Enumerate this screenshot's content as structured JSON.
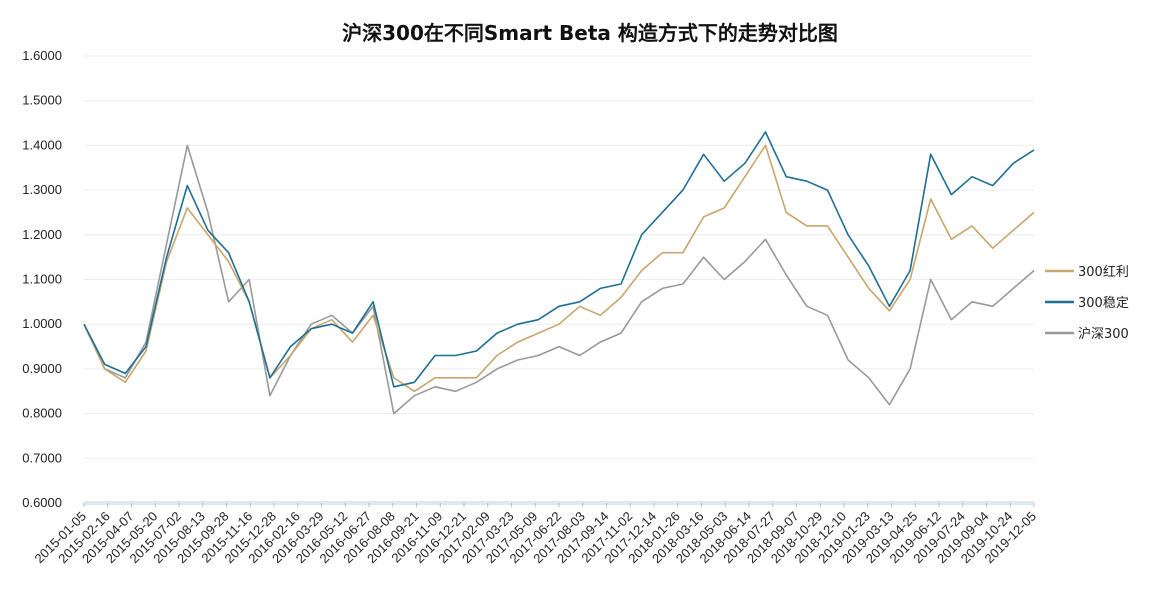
{
  "chart_data": {
    "type": "line",
    "title": "沪深300在不同Smart Beta 构造方式下的走势对比图",
    "xlabel": "",
    "ylabel": "",
    "ylim": [
      0.6,
      1.6
    ],
    "y_ticks": [
      "0.6000",
      "0.7000",
      "0.8000",
      "0.9000",
      "1.0000",
      "1.1000",
      "1.2000",
      "1.3000",
      "1.4000",
      "1.5000",
      "1.6000"
    ],
    "grid": true,
    "legend_position": "right",
    "x_tick_labels": [
      "2015-01-05",
      "2015-02-16",
      "2015-04-07",
      "2015-05-20",
      "2015-07-02",
      "2015-08-13",
      "2015-09-28",
      "2015-11-16",
      "2015-12-28",
      "2016-02-16",
      "2016-03-29",
      "2016-05-12",
      "2016-06-27",
      "2016-08-08",
      "2016-09-21",
      "2016-11-09",
      "2016-12-21",
      "2017-02-09",
      "2017-03-23",
      "2017-05-09",
      "2017-06-22",
      "2017-08-03",
      "2017-09-14",
      "2017-11-02",
      "2017-12-14",
      "2018-01-26",
      "2018-03-16",
      "2018-05-03",
      "2018-06-14",
      "2018-07-27",
      "2018-09-07",
      "2018-10-29",
      "2018-12-10",
      "2019-01-23",
      "2019-03-13",
      "2019-04-25",
      "2019-06-12",
      "2019-07-24",
      "2019-09-04",
      "2019-10-24",
      "2019-12-05"
    ],
    "series": [
      {
        "name": "300红利",
        "color": "#c9a66b",
        "values": [
          1.0,
          0.9,
          0.87,
          0.94,
          1.14,
          1.26,
          1.2,
          1.14,
          1.05,
          0.88,
          0.93,
          0.99,
          1.01,
          0.96,
          1.02,
          0.88,
          0.85,
          0.88,
          0.88,
          0.88,
          0.93,
          0.96,
          0.98,
          1.0,
          1.04,
          1.02,
          1.06,
          1.12,
          1.16,
          1.16,
          1.24,
          1.26,
          1.33,
          1.4,
          1.25,
          1.22,
          1.22,
          1.15,
          1.08,
          1.03,
          1.1,
          1.28,
          1.19,
          1.22,
          1.17,
          1.21,
          1.25
        ]
      },
      {
        "name": "300稳定",
        "color": "#1f6e94",
        "values": [
          1.0,
          0.91,
          0.89,
          0.95,
          1.15,
          1.31,
          1.21,
          1.16,
          1.05,
          0.88,
          0.95,
          0.99,
          1.0,
          0.98,
          1.05,
          0.86,
          0.87,
          0.93,
          0.93,
          0.94,
          0.98,
          1.0,
          1.01,
          1.04,
          1.05,
          1.08,
          1.09,
          1.2,
          1.25,
          1.3,
          1.38,
          1.32,
          1.36,
          1.43,
          1.33,
          1.32,
          1.3,
          1.2,
          1.13,
          1.04,
          1.12,
          1.38,
          1.29,
          1.33,
          1.31,
          1.36,
          1.39
        ]
      },
      {
        "name": "沪深300",
        "color": "#999999",
        "values": [
          1.0,
          0.9,
          0.88,
          0.96,
          1.18,
          1.4,
          1.25,
          1.05,
          1.1,
          0.84,
          0.93,
          1.0,
          1.02,
          0.98,
          1.04,
          0.8,
          0.84,
          0.86,
          0.85,
          0.87,
          0.9,
          0.92,
          0.93,
          0.95,
          0.93,
          0.96,
          0.98,
          1.05,
          1.08,
          1.09,
          1.15,
          1.1,
          1.14,
          1.19,
          1.11,
          1.04,
          1.02,
          0.92,
          0.88,
          0.82,
          0.9,
          1.1,
          1.01,
          1.05,
          1.04,
          1.08,
          1.12
        ]
      }
    ]
  }
}
